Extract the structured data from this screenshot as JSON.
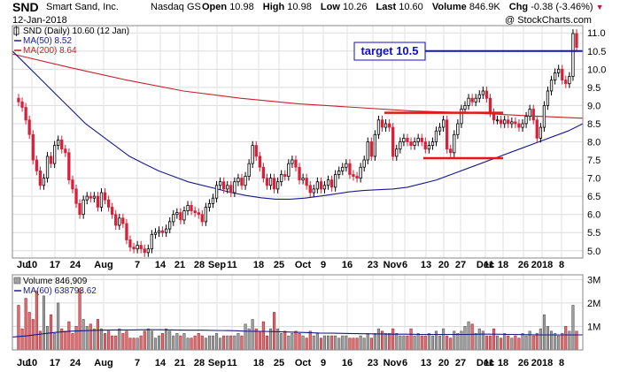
{
  "header": {
    "symbol": "SND",
    "company": "Smart Sand, Inc.",
    "exchange": "Nasdaq GS",
    "date": "12-Jan-2018",
    "open_label": "Open",
    "open": "10.98",
    "high_label": "High",
    "high": "10.98",
    "low_label": "Low",
    "low": "10.26",
    "last_label": "Last",
    "last": "10.60",
    "volume_label": "Volume",
    "volume": "846.9K",
    "chg_label": "Chg",
    "chg": "-0.38 (-3.46%)",
    "credit": "@ StockCharts.com"
  },
  "colors": {
    "up": "#000000",
    "down": "#d8203a",
    "ma50": "#1a1a8c",
    "ma200": "#c8202a",
    "target": "#1010c8",
    "level": "#e01818",
    "vol_up_fill": "#a0a0a0",
    "vol_down_fill": "#e07070"
  },
  "chart_data": [
    {
      "type": "candlestick",
      "title": "SND (Daily) 10.60 (12 Jan)",
      "legend": [
        {
          "name": "SND (Daily) 10.60 (12 Jan)",
          "icon": "candle-icon"
        },
        {
          "name": "MA(50) 8.52",
          "color": "#1a1a8c"
        },
        {
          "name": "MA(200) 8.64",
          "color": "#c8202a"
        }
      ],
      "y_ticks": [
        "11.0",
        "10.5",
        "10.0",
        "9.5",
        "9.0",
        "8.5",
        "8.0",
        "7.5",
        "7.0",
        "6.5",
        "6.0",
        "5.5",
        "5.0"
      ],
      "ylim": [
        4.8,
        11.2
      ],
      "x_ticks": [
        "Jul",
        "10",
        "17",
        "24",
        "Aug",
        "7",
        "14",
        "21",
        "28",
        "Sep",
        "11",
        "18",
        "25",
        "Oct",
        "9",
        "16",
        "23",
        "Nov",
        "6",
        "13",
        "20",
        "27",
        "Dec",
        "11",
        "18",
        "26",
        "2018",
        "8"
      ],
      "grid": true,
      "legend_position": "top-left",
      "annotation": "target 10.5",
      "target_line": 10.5,
      "resistance_line": {
        "value": 8.8,
        "x_range": [
          "Nov 8",
          "Dec 15"
        ]
      },
      "support_line": {
        "value": 7.55,
        "x_range": [
          "Nov 20",
          "Dec 8"
        ]
      },
      "closes": [
        9.1,
        8.95,
        8.6,
        8.2,
        7.5,
        7.2,
        6.8,
        7.0,
        7.6,
        7.4,
        7.9,
        8.05,
        7.8,
        7.7,
        6.95,
        6.7,
        6.3,
        6.0,
        6.4,
        6.5,
        6.45,
        6.5,
        6.2,
        6.6,
        6.4,
        6.2,
        6.0,
        5.7,
        5.9,
        5.75,
        5.3,
        5.1,
        5.05,
        5.15,
        5.05,
        4.95,
        5.05,
        5.45,
        5.5,
        5.55,
        5.5,
        5.6,
        5.8,
        6.0,
        6.05,
        5.85,
        6.1,
        6.25,
        6.1,
        6.05,
        6.0,
        5.8,
        6.2,
        6.3,
        6.45,
        6.8,
        6.9,
        6.7,
        6.8,
        6.6,
        6.9,
        7.0,
        6.8,
        7.05,
        7.4,
        7.9,
        7.6,
        7.3,
        7.0,
        6.8,
        7.0,
        6.7,
        6.9,
        7.1,
        7.05,
        7.4,
        7.5,
        7.3,
        6.95,
        7.0,
        6.8,
        6.6,
        6.7,
        6.9,
        6.7,
        6.8,
        6.95,
        6.75,
        7.1,
        7.2,
        7.3,
        7.4,
        7.1,
        7.05,
        7.0,
        7.3,
        7.5,
        8.0,
        7.6,
        8.2,
        8.6,
        8.4,
        8.5,
        8.4,
        7.6,
        7.8,
        8.0,
        8.1,
        8.0,
        7.9,
        8.0,
        8.1,
        8.0,
        7.8,
        7.9,
        8.0,
        8.3,
        8.4,
        8.6,
        7.8,
        7.7,
        8.2,
        8.5,
        8.9,
        9.0,
        9.2,
        9.1,
        9.2,
        9.3,
        9.4,
        9.2,
        8.8,
        8.6,
        8.6,
        8.5,
        8.6,
        8.5,
        8.55,
        8.5,
        8.4,
        8.5,
        8.7,
        8.9,
        8.6,
        8.1,
        8.4,
        9.0,
        9.4,
        9.7,
        9.9,
        10.0,
        9.7,
        9.6,
        9.8,
        10.98,
        10.6
      ],
      "ma50": [
        10.5,
        10.1,
        9.7,
        9.3,
        8.9,
        8.5,
        8.2,
        7.9,
        7.6,
        7.4,
        7.2,
        7.05,
        6.9,
        6.8,
        6.7,
        6.6,
        6.52,
        6.46,
        6.42,
        6.42,
        6.45,
        6.5,
        6.56,
        6.62,
        6.66,
        6.68,
        6.7,
        6.75,
        6.85,
        6.95,
        7.1,
        7.25,
        7.4,
        7.55,
        7.7,
        7.85,
        8.0,
        8.15,
        8.3,
        8.5
      ],
      "ma200": [
        10.42,
        10.05,
        9.7,
        9.4,
        9.2,
        9.05,
        8.95,
        8.85,
        8.8,
        8.72,
        8.65
      ],
      "volume_panel": {
        "legend": [
          {
            "name": "Volume 846,909",
            "icon": "volume-icon"
          },
          {
            "name": "MA(60) 638793.62",
            "color": "#1a1a8c"
          }
        ],
        "y_ticks": [
          "3M",
          "2M",
          "1M"
        ],
        "ylim": [
          0,
          3.2
        ],
        "volume_millions": [
          1.9,
          0.9,
          2.2,
          1.6,
          1.3,
          2.5,
          0.8,
          2.3,
          1.0,
          1.5,
          0.7,
          2.0,
          0.9,
          0.8,
          1.2,
          0.7,
          1.0,
          2.6,
          1.3,
          1.0,
          1.1,
          0.9,
          1.3,
          0.9,
          0.7,
          0.8,
          0.6,
          0.6,
          0.9,
          0.7,
          0.8,
          0.5,
          0.5,
          0.5,
          0.6,
          0.8,
          0.9,
          0.8,
          0.5,
          0.6,
          0.7,
          0.9,
          0.8,
          0.6,
          0.7,
          0.6,
          0.7,
          0.5,
          0.5,
          0.6,
          0.7,
          0.6,
          0.5,
          0.6,
          0.6,
          0.7,
          0.5,
          0.6,
          0.6,
          0.6,
          0.6,
          0.7,
          0.6,
          1.1,
          0.9,
          1.3,
          0.9,
          0.8,
          1.2,
          0.6,
          0.9,
          1.6,
          0.9,
          0.7,
          0.8,
          0.6,
          0.7,
          0.8,
          0.7,
          0.6,
          0.5,
          0.8,
          0.6,
          0.7,
          0.5,
          0.6,
          0.6,
          0.6,
          0.6,
          0.5,
          0.6,
          0.6,
          0.5,
          0.5,
          0.5,
          0.6,
          0.5,
          0.7,
          0.5,
          0.7,
          0.9,
          0.8,
          0.7,
          0.7,
          0.9,
          0.7,
          0.6,
          0.6,
          0.6,
          0.9,
          0.6,
          0.7,
          0.6,
          0.6,
          0.7,
          0.6,
          0.8,
          0.6,
          0.9,
          0.6,
          0.5,
          0.8,
          0.7,
          0.8,
          1.0,
          1.2,
          1.1,
          0.7,
          0.9,
          0.8,
          0.6,
          0.6,
          0.9,
          0.6,
          0.5,
          0.7,
          0.6,
          0.5,
          0.6,
          0.5,
          0.7,
          0.6,
          0.8,
          0.6,
          0.7,
          0.9,
          1.5,
          1.0,
          0.8,
          0.7,
          0.6,
          0.7,
          1.0,
          0.8,
          1.9,
          0.8
        ],
        "ma60_millions": [
          0.55,
          0.6,
          0.68,
          0.75,
          0.8,
          0.82,
          0.84,
          0.85,
          0.85,
          0.86,
          0.86,
          0.85,
          0.84,
          0.84,
          0.83,
          0.82,
          0.8,
          0.79,
          0.78,
          0.76,
          0.74,
          0.72,
          0.71,
          0.7,
          0.69,
          0.68,
          0.67,
          0.67,
          0.66,
          0.66,
          0.66,
          0.66,
          0.67,
          0.67,
          0.66,
          0.65,
          0.64,
          0.64,
          0.64,
          0.64
        ]
      }
    }
  ]
}
